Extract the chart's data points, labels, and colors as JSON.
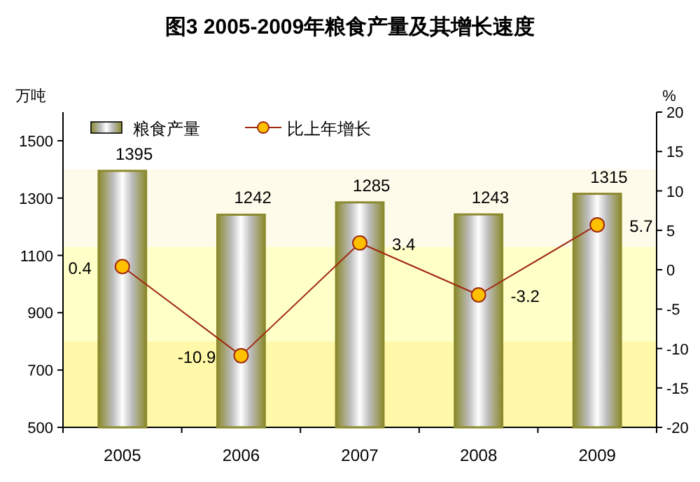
{
  "chart_data": {
    "type": "bar",
    "title": "图3 2005-2009年粮食产量及其增长速度",
    "ylabel": "万吨",
    "y2label": "%",
    "categories": [
      "2005",
      "2006",
      "2007",
      "2008",
      "2009"
    ],
    "series": [
      {
        "name": "粮食产量",
        "type": "bar",
        "color": "#8c8a2e",
        "values": [
          1395,
          1242,
          1285,
          1243,
          1315
        ]
      },
      {
        "name": "比上年增长",
        "type": "line",
        "axis": "y2",
        "color": "#a02810",
        "marker": "circle",
        "values": [
          0.4,
          -10.9,
          3.4,
          -3.2,
          5.7
        ]
      }
    ],
    "ylim": [
      500,
      1600
    ],
    "yticks": [
      500,
      700,
      900,
      1100,
      1300,
      1500
    ],
    "y2lim": [
      -20,
      20
    ],
    "y2ticks": [
      -20,
      -15,
      -10,
      -5,
      0,
      5,
      10,
      15,
      20
    ],
    "bands": [
      {
        "axis": "y",
        "from": 500,
        "to": 800,
        "color": "#fff8a8"
      },
      {
        "axis": "y",
        "from": 800,
        "to": 1130,
        "color": "#ffffc8"
      },
      {
        "axis": "y",
        "from": 1130,
        "to": 1400,
        "color": "#fffbea"
      }
    ],
    "data_labels": true,
    "legend": "top left",
    "grid": false
  }
}
